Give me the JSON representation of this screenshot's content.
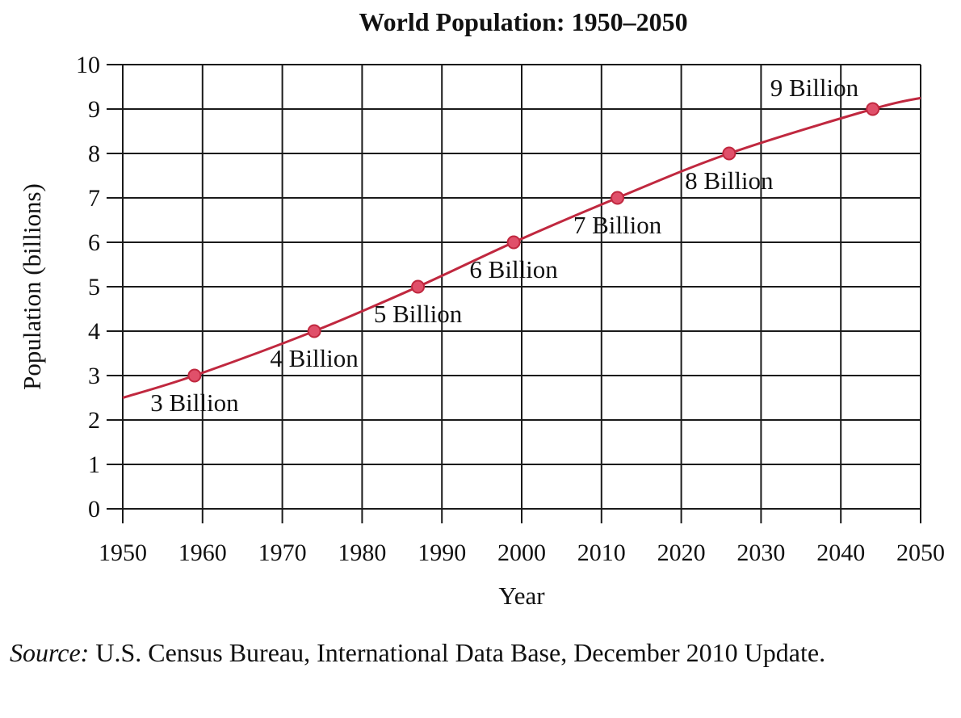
{
  "chart_data": {
    "type": "line",
    "title": "World Population: 1950–2050",
    "xlabel": "Year",
    "ylabel": "Population (billions)",
    "xlim": [
      1950,
      2050
    ],
    "ylim": [
      0,
      10
    ],
    "x_ticks": [
      "1950",
      "1960",
      "1970",
      "1980",
      "1990",
      "2000",
      "2010",
      "2020",
      "2030",
      "2040",
      "2050"
    ],
    "y_ticks": [
      "0",
      "1",
      "2",
      "3",
      "4",
      "5",
      "6",
      "7",
      "8",
      "9",
      "10"
    ],
    "grid": true,
    "line_color": "#c0283f",
    "marker_color": "#e0506a",
    "series": [
      {
        "x": [
          1950,
          1959,
          1974,
          1987,
          1999,
          2012,
          2026,
          2044,
          2050
        ],
        "y": [
          2.5,
          3,
          4,
          5,
          6,
          7,
          8,
          9,
          9.25
        ]
      }
    ],
    "milestones": [
      {
        "x": 1959,
        "y": 3,
        "label": "3 Billion"
      },
      {
        "x": 1974,
        "y": 4,
        "label": "4 Billion"
      },
      {
        "x": 1987,
        "y": 5,
        "label": "5 Billion"
      },
      {
        "x": 1999,
        "y": 6,
        "label": "6 Billion"
      },
      {
        "x": 2012,
        "y": 7,
        "label": "7 Billion"
      },
      {
        "x": 2026,
        "y": 8,
        "label": "8 Billion"
      },
      {
        "x": 2044,
        "y": 9,
        "label": "9 Billion"
      }
    ]
  },
  "source": {
    "label": "Source:",
    "text": " U.S. Census Bureau, International Data Base, December 2010 Update."
  }
}
